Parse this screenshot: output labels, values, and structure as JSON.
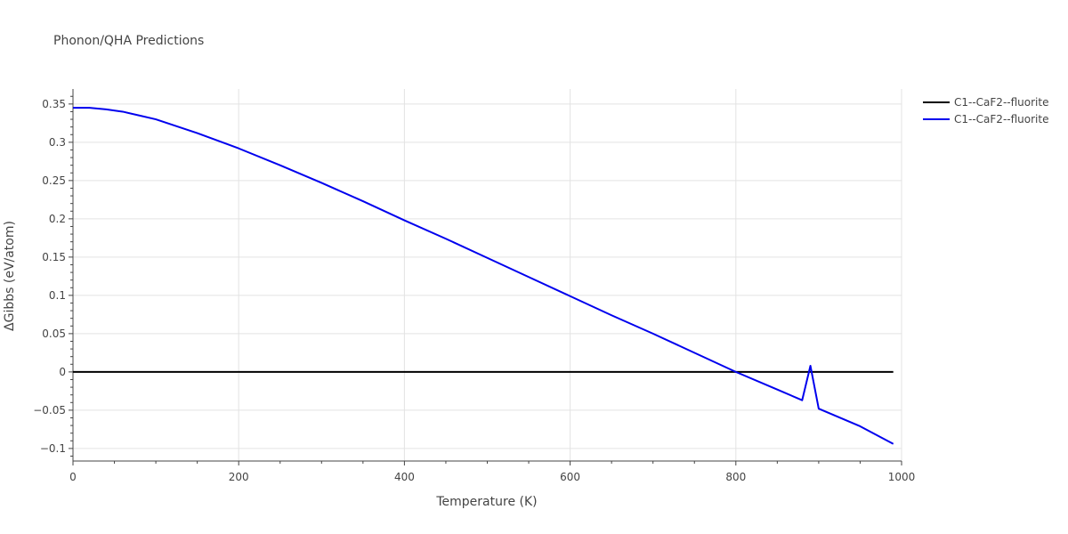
{
  "chart_data": {
    "type": "line",
    "title": "Phonon/QHA Predictions",
    "xlabel": "Temperature (K)",
    "ylabel": "ΔGibbs (eV/atom)",
    "xlim": [
      0,
      1000
    ],
    "ylim": [
      -0.1164,
      0.3696
    ],
    "x_ticks": [
      0,
      200,
      400,
      600,
      800,
      1000
    ],
    "x_tick_labels": [
      "0",
      "200",
      "400",
      "600",
      "800",
      "1000"
    ],
    "y_ticks": [
      -0.1,
      -0.05,
      0,
      0.05,
      0.1,
      0.15,
      0.2,
      0.25,
      0.3,
      0.35
    ],
    "y_tick_labels": [
      "−0.1",
      "−0.05",
      "0",
      "0.05",
      "0.1",
      "0.15",
      "0.2",
      "0.25",
      "0.3",
      "0.35"
    ],
    "grid": true,
    "legend_position": "top-right",
    "series": [
      {
        "name": "C1--CaF2--fluorite",
        "color": "#000000",
        "x": [
          0,
          990
        ],
        "y": [
          0,
          0
        ]
      },
      {
        "name": "C1--CaF2--fluorite",
        "color": "#0000ee",
        "x": [
          0,
          20,
          40,
          60,
          80,
          100,
          150,
          200,
          250,
          300,
          350,
          400,
          450,
          500,
          550,
          600,
          650,
          700,
          750,
          800,
          850,
          880,
          890,
          900,
          950,
          990
        ],
        "y": [
          0.345,
          0.345,
          0.343,
          0.34,
          0.335,
          0.33,
          0.312,
          0.292,
          0.27,
          0.247,
          0.223,
          0.198,
          0.174,
          0.149,
          0.124,
          0.099,
          0.074,
          0.05,
          0.025,
          0.0,
          -0.023,
          -0.037,
          0.008,
          -0.048,
          -0.071,
          -0.094
        ]
      }
    ]
  }
}
